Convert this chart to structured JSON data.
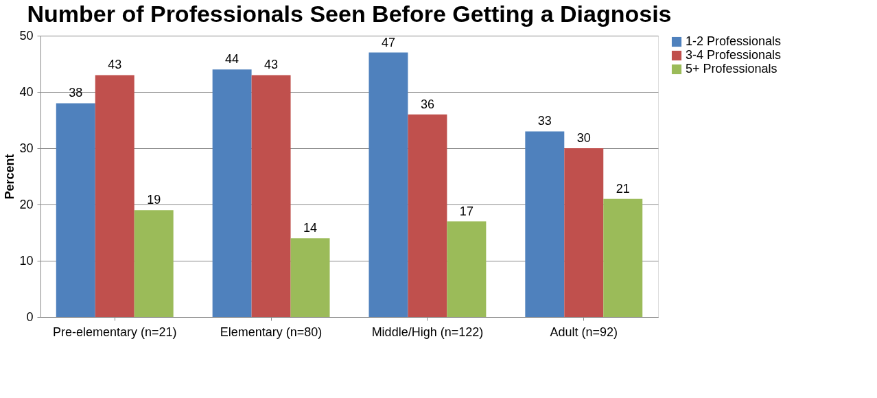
{
  "chart_data": {
    "type": "bar",
    "title": "Number of Professionals Seen Before Getting a Diagnosis",
    "ylabel": "Percent",
    "categories": [
      "Pre-elementary (n=21)",
      "Elementary (n=80)",
      "Middle/High (n=122)",
      "Adult (n=92)"
    ],
    "series": [
      {
        "name": "1-2 Professionals",
        "color": "#4f81bd",
        "values": [
          38,
          44,
          47,
          33
        ]
      },
      {
        "name": "3-4 Professionals",
        "color": "#c0504d",
        "values": [
          43,
          43,
          36,
          30
        ]
      },
      {
        "name": "5+ Professionals",
        "color": "#9bbb59",
        "values": [
          19,
          14,
          17,
          21
        ]
      }
    ],
    "ylim": [
      0,
      50
    ],
    "yticks": [
      0,
      10,
      20,
      30,
      40,
      50
    ],
    "grid": "y",
    "legend": "right",
    "data_labels": true
  }
}
